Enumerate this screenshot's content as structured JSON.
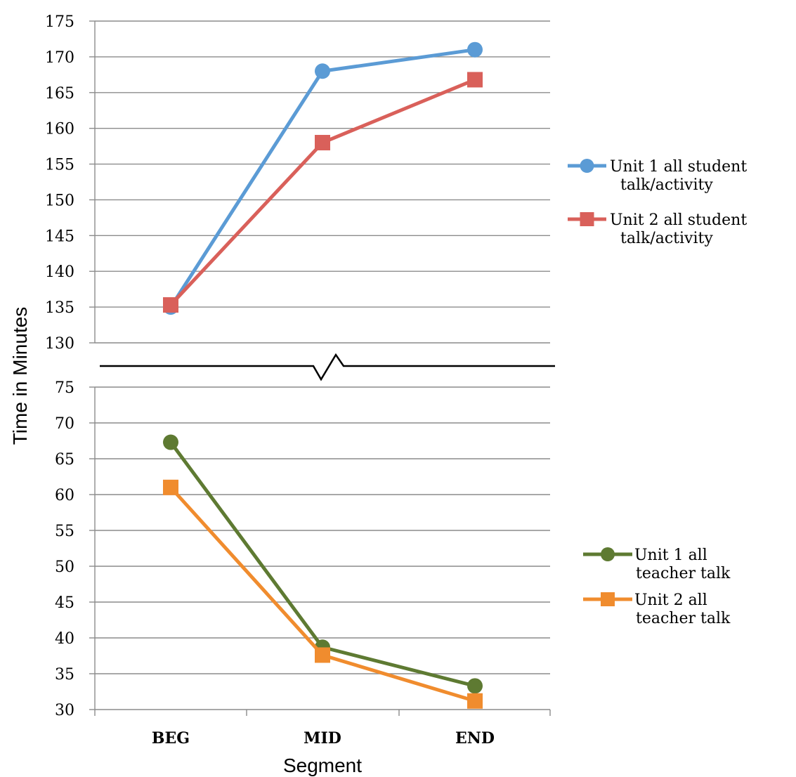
{
  "chart_data": {
    "type": "line",
    "ylabel": "Time in Minutes",
    "xlabel": "Segment",
    "categories": [
      "BEG",
      "MID",
      "END"
    ],
    "axis_break": true,
    "panels": [
      {
        "name": "upper",
        "ylim": [
          130,
          175
        ],
        "yticks": [
          130,
          135,
          140,
          145,
          150,
          155,
          160,
          165,
          170,
          175
        ],
        "grid": true,
        "series": [
          {
            "name": "Unit 1 all student talk/activity",
            "legend_lines": [
              "Unit 1 all student",
              "talk/activity"
            ],
            "marker": "circle",
            "color": "#5b9bd5",
            "values": [
              135,
              168,
              171
            ]
          },
          {
            "name": "Unit 2 all student talk/activity",
            "legend_lines": [
              "Unit 2 all student",
              "talk/activity"
            ],
            "marker": "square",
            "color": "#d9605a",
            "values": [
              135.3,
              158,
              166.8
            ]
          }
        ]
      },
      {
        "name": "lower",
        "ylim": [
          30,
          75
        ],
        "yticks": [
          30,
          35,
          40,
          45,
          50,
          55,
          60,
          65,
          70,
          75
        ],
        "grid": true,
        "series": [
          {
            "name": "Unit 1 all teacher talk",
            "legend_lines": [
              "Unit 1 all",
              "teacher talk"
            ],
            "marker": "circle",
            "color": "#5e7a32",
            "values": [
              67.3,
              38.7,
              33.3
            ]
          },
          {
            "name": "Unit 2 all teacher talk",
            "legend_lines": [
              "Unit 2 all",
              "teacher talk"
            ],
            "marker": "square",
            "color": "#f08c2e",
            "values": [
              61,
              37.6,
              31.2
            ]
          }
        ]
      }
    ]
  }
}
